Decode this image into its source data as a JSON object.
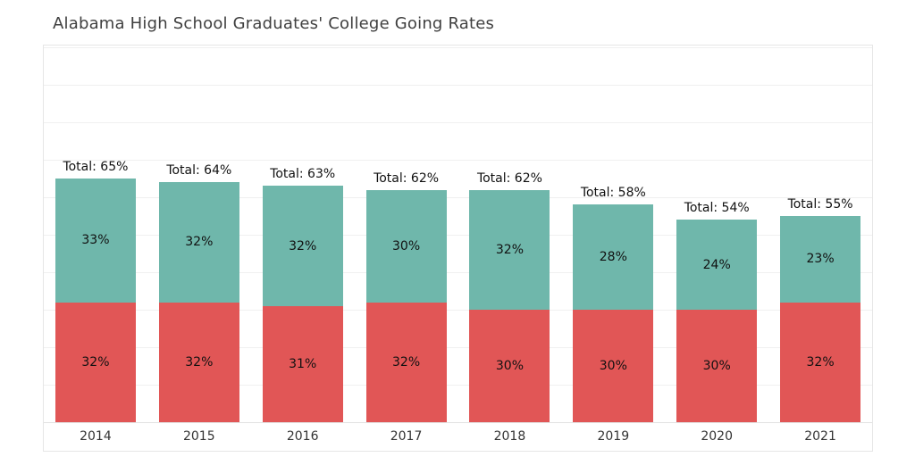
{
  "chart_data": {
    "type": "bar",
    "stacked": true,
    "title": "Alabama High School Graduates' College Going Rates",
    "categories": [
      "2014",
      "2015",
      "2016",
      "2017",
      "2018",
      "2019",
      "2020",
      "2021"
    ],
    "series": [
      {
        "name": "bottom-segment",
        "color": "#e15656",
        "values": [
          32,
          32,
          31,
          32,
          30,
          30,
          30,
          32
        ]
      },
      {
        "name": "top-segment",
        "color": "#6fb7ab",
        "values": [
          33,
          32,
          32,
          30,
          32,
          28,
          24,
          23
        ]
      }
    ],
    "totals": [
      65,
      64,
      63,
      62,
      62,
      58,
      54,
      55
    ],
    "annotations": [
      "Total: 65%",
      "Total: 64%",
      "Total: 63%",
      "Total: 62%",
      "Total: 62%",
      "Total: 58%",
      "Total: 54%",
      "Total: 55%"
    ],
    "total_label_prefix": "Total: ",
    "value_suffix": "%",
    "xlabel": "",
    "ylabel": "",
    "ylim": [
      0,
      100
    ],
    "grid": true,
    "gridline_step": 10,
    "legend": "none"
  }
}
